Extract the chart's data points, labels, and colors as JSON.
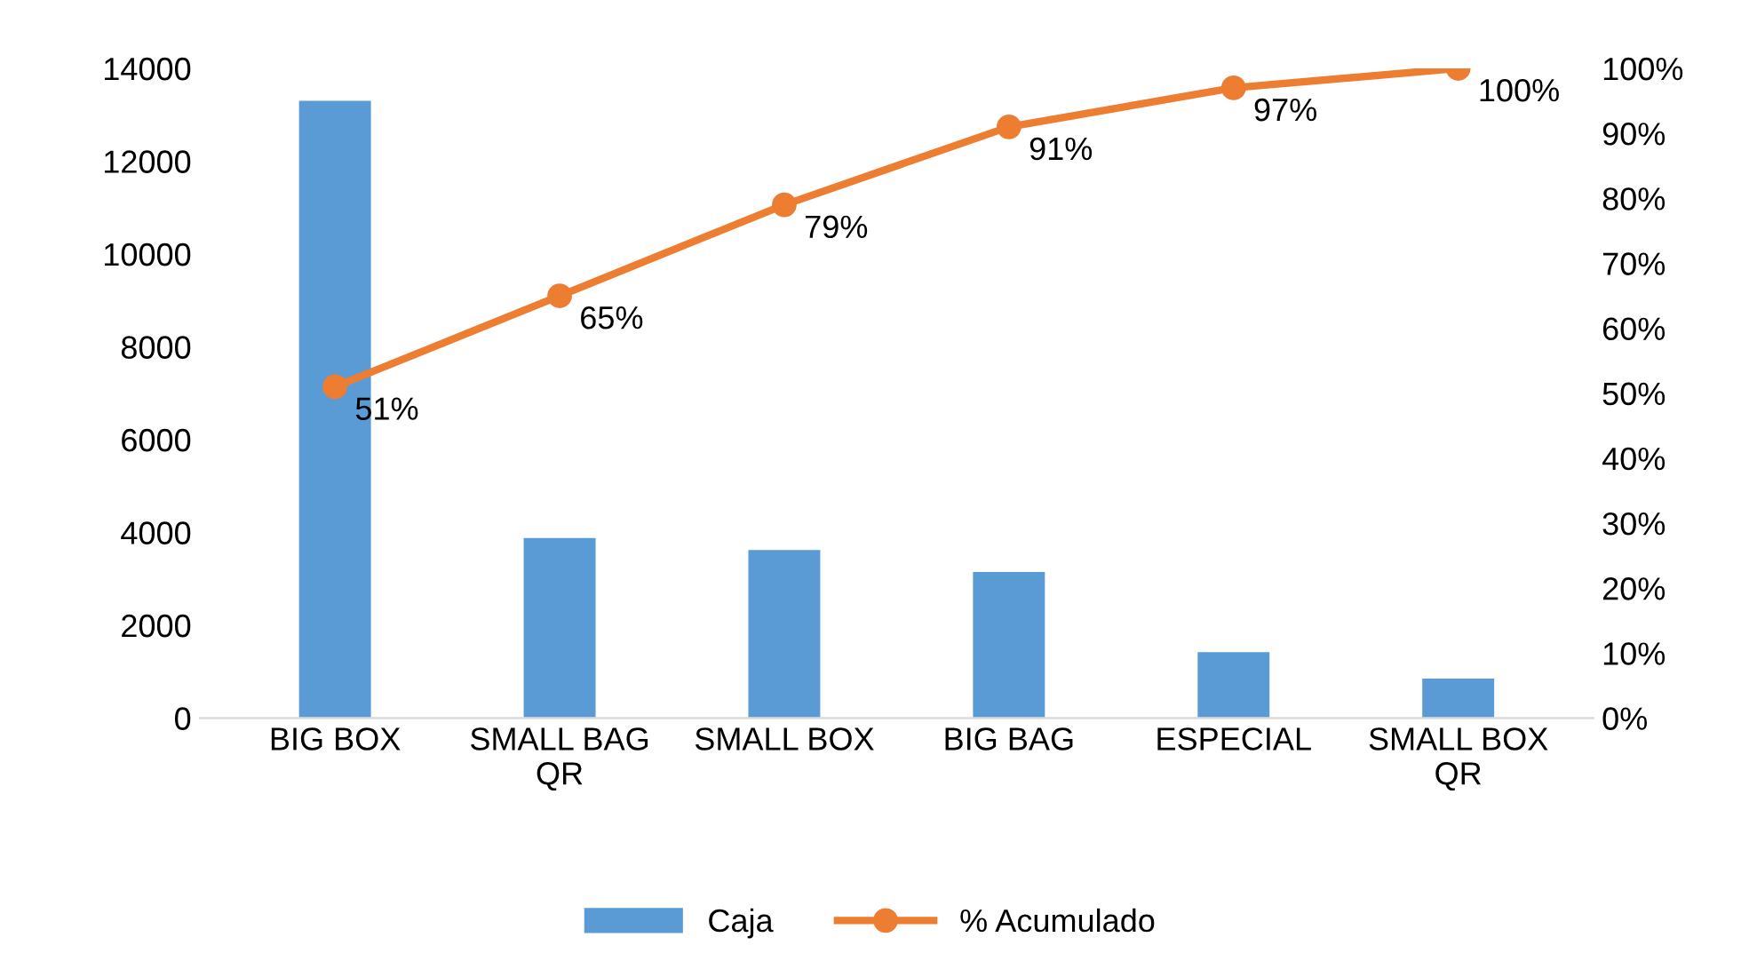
{
  "chart_data": {
    "type": "bar",
    "categories": [
      "BIG BOX",
      "SMALL BAG\nQR",
      "SMALL BOX",
      "BIG BAG",
      "ESPECIAL",
      "SMALL BOX\nQR"
    ],
    "series": [
      {
        "name": "Caja",
        "color": "#5b9bd5",
        "values": [
          13300,
          3880,
          3620,
          3150,
          1420,
          850
        ]
      },
      {
        "name": "% Acumulado",
        "type": "line",
        "axis": "y2",
        "color": "#ed7d31",
        "marker": "circle",
        "values": [
          51,
          65,
          79,
          91,
          97,
          100
        ],
        "value_labels": [
          "51%",
          "65%",
          "79%",
          "91%",
          "97%",
          "100%"
        ]
      }
    ],
    "ylim": [
      0,
      14000
    ],
    "yticks": [
      0,
      2000,
      4000,
      6000,
      8000,
      10000,
      12000,
      14000
    ],
    "y2lim": [
      0,
      100
    ],
    "y2ticks": [
      {
        "value": 0,
        "label": "0%"
      },
      {
        "value": 10,
        "label": "10%"
      },
      {
        "value": 20,
        "label": "20%"
      },
      {
        "value": 30,
        "label": "30%"
      },
      {
        "value": 40,
        "label": "40%"
      },
      {
        "value": 50,
        "label": "50%"
      },
      {
        "value": 60,
        "label": "60%"
      },
      {
        "value": 70,
        "label": "70%"
      },
      {
        "value": 80,
        "label": "80%"
      },
      {
        "value": 90,
        "label": "90%"
      },
      {
        "value": 100,
        "label": "100%"
      }
    ],
    "legend": "bottom",
    "grid": false
  }
}
